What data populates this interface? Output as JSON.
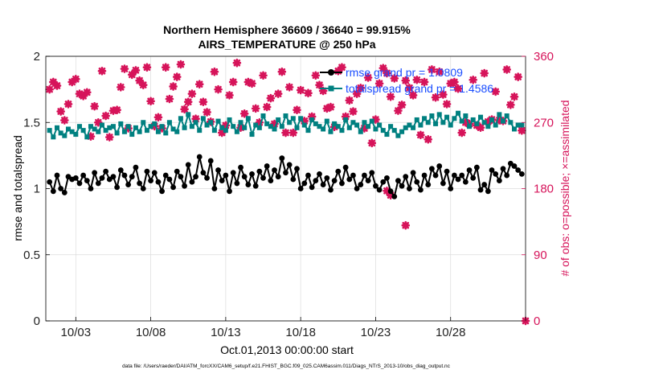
{
  "chart_data": {
    "type": "line",
    "title": "Northern Hemisphere 36609 / 36640 = 99.915%",
    "subtitle": "AIRS_TEMPERATURE @ 250 hPa",
    "xlabel": "Oct.01,2013 00:00:00 start",
    "ylabel": "rmse and totalspread",
    "y2label": "# of obs: o=possible; ×=assimilated",
    "xlim": [
      1,
      33
    ],
    "ylim": [
      0,
      2
    ],
    "y2lim": [
      0,
      360
    ],
    "x_tick_labels": [
      "10/03",
      "10/08",
      "10/13",
      "10/18",
      "10/23",
      "10/28"
    ],
    "x_tick_values": [
      3,
      8,
      13,
      18,
      23,
      28
    ],
    "y_tick_labels": [
      "0",
      "0.5",
      "1",
      "1.5",
      "2"
    ],
    "y2_tick_labels": [
      "0",
      "90",
      "180",
      "270",
      "360"
    ],
    "grid": true,
    "legend_position": "top-right",
    "colors": {
      "rmse": "#000000",
      "spread": "#008080",
      "obs": "#d6145a",
      "legend_text": "#1a4dff"
    },
    "x": [
      1.25,
      1.5,
      1.75,
      2.0,
      2.25,
      2.5,
      2.75,
      3.0,
      3.25,
      3.5,
      3.75,
      4.0,
      4.25,
      4.5,
      4.75,
      5.0,
      5.25,
      5.5,
      5.75,
      6.0,
      6.25,
      6.5,
      6.75,
      7.0,
      7.25,
      7.5,
      7.75,
      8.0,
      8.25,
      8.5,
      8.75,
      9.0,
      9.25,
      9.5,
      9.75,
      10.0,
      10.25,
      10.5,
      10.75,
      11.0,
      11.25,
      11.5,
      11.75,
      12.0,
      12.25,
      12.5,
      12.75,
      13.0,
      13.25,
      13.5,
      13.75,
      14.0,
      14.25,
      14.5,
      14.75,
      15.0,
      15.25,
      15.5,
      15.75,
      16.0,
      16.25,
      16.5,
      16.75,
      17.0,
      17.25,
      17.5,
      17.75,
      18.0,
      18.25,
      18.5,
      18.75,
      19.0,
      19.25,
      19.5,
      19.75,
      20.0,
      20.25,
      20.5,
      20.75,
      21.0,
      21.25,
      21.5,
      21.75,
      22.0,
      22.25,
      22.5,
      22.75,
      23.0,
      23.25,
      23.5,
      23.75,
      24.0,
      24.25,
      24.5,
      24.75,
      25.0,
      25.25,
      25.5,
      25.75,
      26.0,
      26.25,
      26.5,
      26.75,
      27.0,
      27.25,
      27.5,
      27.75,
      28.0,
      28.25,
      28.5,
      28.75,
      29.0,
      29.25,
      29.5,
      29.75,
      30.0,
      30.25,
      30.5,
      30.75,
      31.0,
      31.25,
      31.5,
      31.75,
      32.0,
      32.25,
      32.5,
      32.75
    ],
    "series": [
      {
        "name": "rmse grand pr = 1.0809",
        "axis": "left",
        "values": [
          1.05,
          0.98,
          1.1,
          1.0,
          0.97,
          1.09,
          1.07,
          1.08,
          1.04,
          1.1,
          1.06,
          1.0,
          1.12,
          1.04,
          1.08,
          1.13,
          1.07,
          1.09,
          1.01,
          1.14,
          1.1,
          1.03,
          1.09,
          1.16,
          1.04,
          1.0,
          1.13,
          1.06,
          1.12,
          1.05,
          0.98,
          1.1,
          1.07,
          1.01,
          1.13,
          1.09,
          1.02,
          1.18,
          1.05,
          1.09,
          1.24,
          1.12,
          1.08,
          1.21,
          1.0,
          1.14,
          1.06,
          1.1,
          0.98,
          1.12,
          1.04,
          1.16,
          1.09,
          1.03,
          1.11,
          1.02,
          1.13,
          1.08,
          1.17,
          1.06,
          1.14,
          1.09,
          1.23,
          1.12,
          1.18,
          1.07,
          1.15,
          1.0,
          1.04,
          1.1,
          1.01,
          1.06,
          1.11,
          1.03,
          1.08,
          0.99,
          1.06,
          1.13,
          1.04,
          1.16,
          1.07,
          1.1,
          1.0,
          1.03,
          1.1,
          1.06,
          1.12,
          1.02,
          0.99,
          1.05,
          1.08,
          0.98,
          0.94,
          1.06,
          1.02,
          1.09,
          1.0,
          1.12,
          1.05,
          0.99,
          1.1,
          1.03,
          1.15,
          1.1,
          1.17,
          1.04,
          1.13,
          1.0,
          1.1,
          1.07,
          1.1,
          1.05,
          1.14,
          1.08,
          1.16,
          0.99,
          1.03,
          0.98,
          1.14,
          1.11,
          1.06,
          1.15,
          1.1,
          1.19,
          1.17,
          1.14,
          1.11
        ]
      },
      {
        "name": "totalspread grand pr = 1.4586",
        "axis": "left",
        "values": [
          1.44,
          1.39,
          1.46,
          1.42,
          1.4,
          1.45,
          1.43,
          1.41,
          1.47,
          1.44,
          1.39,
          1.47,
          1.45,
          1.43,
          1.48,
          1.44,
          1.46,
          1.47,
          1.42,
          1.49,
          1.43,
          1.47,
          1.41,
          1.46,
          1.43,
          1.5,
          1.44,
          1.47,
          1.49,
          1.43,
          1.47,
          1.42,
          1.5,
          1.45,
          1.43,
          1.53,
          1.46,
          1.56,
          1.47,
          1.5,
          1.44,
          1.53,
          1.48,
          1.5,
          1.44,
          1.51,
          1.46,
          1.44,
          1.52,
          1.47,
          1.43,
          1.5,
          1.46,
          1.53,
          1.41,
          1.48,
          1.46,
          1.55,
          1.49,
          1.47,
          1.45,
          1.52,
          1.47,
          1.55,
          1.5,
          1.53,
          1.46,
          1.53,
          1.48,
          1.44,
          1.52,
          1.49,
          1.47,
          1.45,
          1.51,
          1.43,
          1.49,
          1.47,
          1.44,
          1.52,
          1.46,
          1.5,
          1.48,
          1.43,
          1.5,
          1.47,
          1.51,
          1.45,
          1.48,
          1.44,
          1.41,
          1.47,
          1.44,
          1.4,
          1.43,
          1.46,
          1.48,
          1.46,
          1.52,
          1.48,
          1.53,
          1.5,
          1.55,
          1.49,
          1.56,
          1.5,
          1.54,
          1.48,
          1.53,
          1.57,
          1.51,
          1.55,
          1.47,
          1.52,
          1.49,
          1.54,
          1.5,
          1.47,
          1.52,
          1.48,
          1.56,
          1.51,
          1.55,
          1.5,
          1.45,
          1.48,
          1.48
        ]
      },
      {
        "name": "# of obs possible",
        "axis": "right",
        "values": [
          315,
          325,
          320,
          285,
          273,
          295,
          325,
          329,
          309,
          306,
          311,
          251,
          292,
          270,
          340,
          279,
          250,
          286,
          287,
          318,
          343,
          262,
          335,
          341,
          327,
          321,
          345,
          299,
          265,
          277,
          262,
          345,
          302,
          319,
          332,
          349,
          288,
          298,
          309,
          275,
          322,
          298,
          284,
          271,
          339,
          315,
          256,
          266,
          307,
          325,
          351,
          263,
          282,
          325,
          323,
          289,
          270,
          334,
          291,
          303,
          268,
          309,
          339,
          256,
          318,
          256,
          287,
          314,
          272,
          310,
          278,
          334,
          321,
          313,
          289,
          291,
          264,
          340,
          345,
          278,
          300,
          285,
          309,
          317,
          262,
          331,
          242,
          274,
          323,
          344,
          337,
          305,
          330,
          286,
          294,
          327,
          317,
          307,
          328,
          253,
          325,
          247,
          342,
          304,
          339,
          308,
          295,
          323,
          325,
          316,
          256,
          270,
          268,
          328,
          266,
          263,
          337,
          271,
          274,
          312,
          273,
          272,
          342,
          294,
          305,
          332,
          259
        ]
      },
      {
        "name": "# of obs assimilated (special points)",
        "axis": "right",
        "points": [
          [
            23.75,
            177
          ],
          [
            24.0,
            171
          ],
          [
            25.0,
            130
          ],
          [
            33.0,
            0
          ]
        ]
      }
    ]
  },
  "footer": "data file: /Users/raeder/DAI/ATM_forcXX/CAM6_setup/f.e21.FHIST_BGC.f09_025.CAM6assim.011/Diags_NTrS_2013-10/obs_diag_output.nc"
}
